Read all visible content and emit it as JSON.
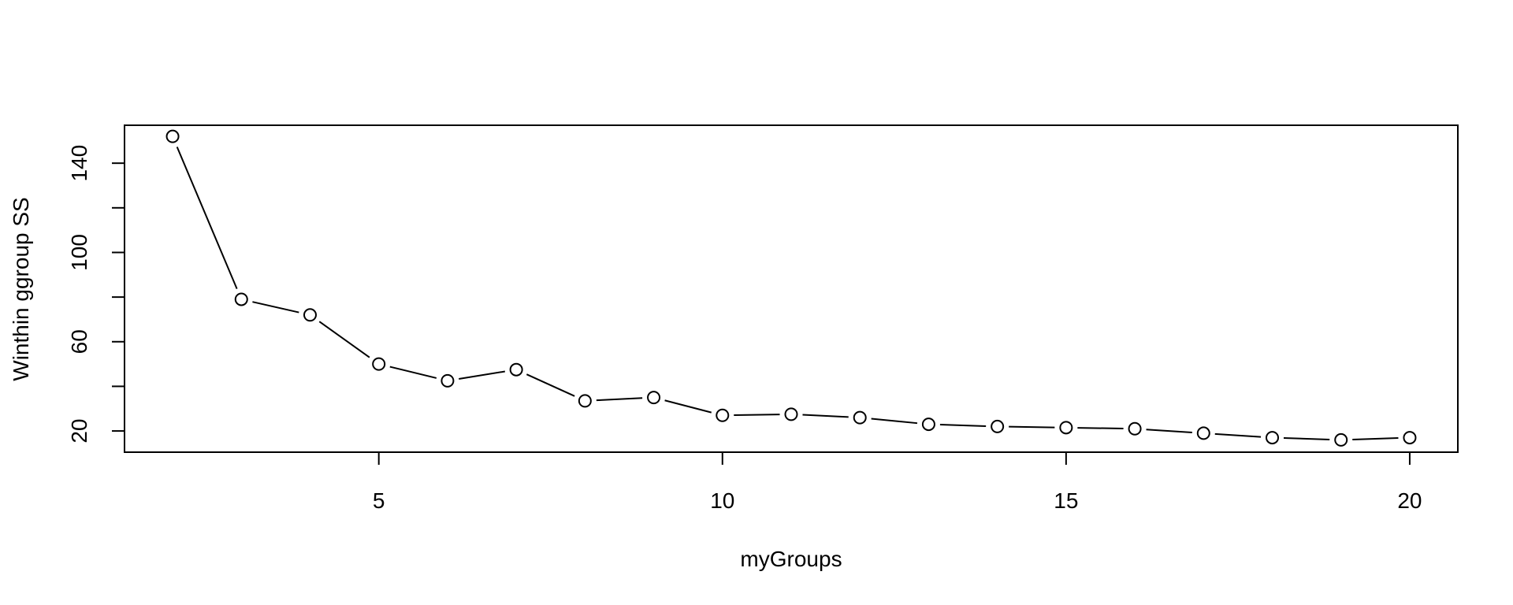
{
  "chart_data": {
    "type": "line",
    "title": "",
    "xlabel": "myGroups",
    "ylabel": "Winthin ggroup SS",
    "x": [
      2,
      3,
      4,
      5,
      6,
      7,
      8,
      9,
      10,
      11,
      12,
      13,
      14,
      15,
      16,
      17,
      18,
      19,
      20
    ],
    "series": [
      {
        "values": [
          152,
          79,
          72,
          50,
          42.5,
          47.5,
          33.5,
          35,
          27,
          27.5,
          26,
          23,
          22,
          21.5,
          21,
          19,
          17,
          16,
          17
        ],
        "marker": "open-circle",
        "color": "#000000"
      }
    ],
    "xlim": [
      1.3,
      20.7
    ],
    "ylim": [
      10.5,
      157
    ],
    "xticks": [
      5,
      10,
      15,
      20
    ],
    "xtick_labels": [
      "5",
      "10",
      "15",
      "20"
    ],
    "yticks": [
      20,
      40,
      60,
      80,
      100,
      120,
      140
    ],
    "ytick_labels": [
      "20",
      "",
      "60",
      "",
      "100",
      "",
      "140"
    ],
    "grid": false,
    "legend": "none"
  }
}
